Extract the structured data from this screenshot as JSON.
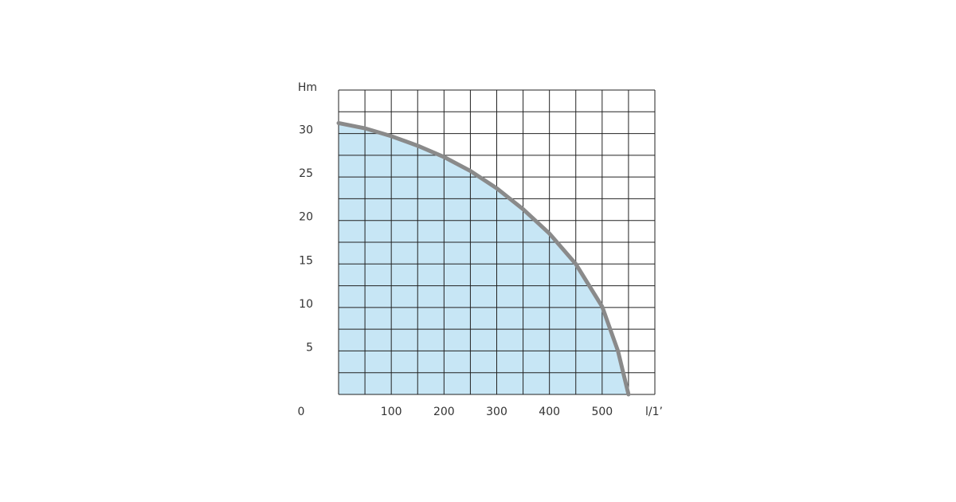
{
  "chart_data": {
    "type": "area",
    "y_label": "Hm",
    "x_label": "l/1’",
    "x": [
      0,
      50,
      100,
      150,
      200,
      250,
      300,
      350,
      400,
      450,
      500,
      530,
      550
    ],
    "series": [
      {
        "values": [
          31.2,
          30.6,
          29.7,
          28.6,
          27.3,
          25.7,
          23.7,
          21.3,
          18.5,
          15,
          10.1,
          5,
          0
        ],
        "color": "#8a8a8a",
        "fill": "#c7e6f5"
      }
    ],
    "xlim": [
      0,
      600
    ],
    "ylim": [
      0,
      35
    ],
    "xticks": [
      0,
      100,
      200,
      300,
      400,
      500
    ],
    "yticks": [
      5,
      10,
      15,
      20,
      25,
      30
    ],
    "grid": true,
    "x_grid_step": 50,
    "y_grid_step": 2.5
  }
}
